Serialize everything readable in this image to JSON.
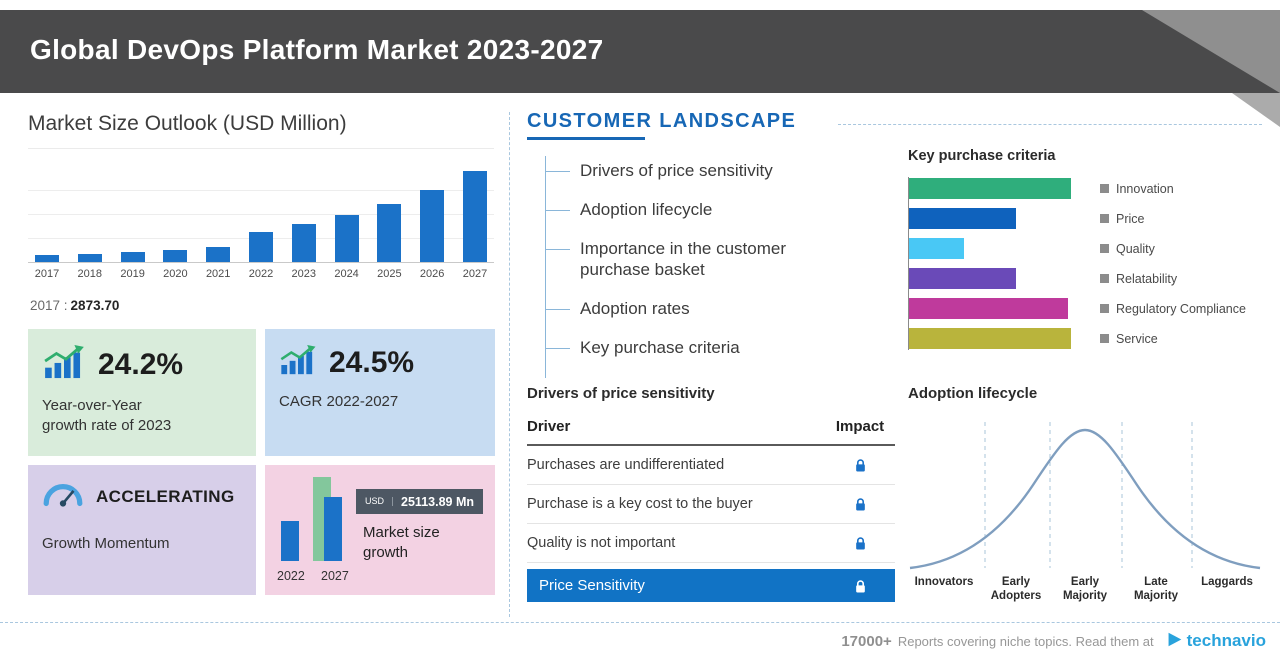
{
  "header": {
    "title": "Global DevOps Platform Market 2023-2027"
  },
  "market_outlook": {
    "title": "Market Size Outlook (USD Million)",
    "base_year_label": "2017 :",
    "base_year_value": "2873.70",
    "cards": {
      "yoy": {
        "value": "24.2%",
        "label_lines": [
          "Year-over-Year",
          "growth rate of 2023"
        ]
      },
      "cagr": {
        "value": "24.5%",
        "label": "CAGR 2022-2027"
      },
      "momentum": {
        "value": "ACCELERATING",
        "label": "Growth Momentum"
      },
      "growth": {
        "badge_currency": "USD",
        "badge_value": "25113.89 Mn",
        "label_lines": [
          "Market size",
          "growth"
        ],
        "year_start": "2022",
        "year_end": "2027"
      }
    }
  },
  "customer_landscape": {
    "title": "CUSTOMER LANDSCAPE",
    "items": [
      "Drivers of price sensitivity",
      "Adoption lifecycle",
      "Importance in the customer purchase basket",
      "Adoption rates",
      "Key purchase criteria"
    ],
    "key_purchase": {
      "title": "Key purchase criteria",
      "legend": [
        "Innovation",
        "Price",
        "Quality",
        "Relatability",
        "Regulatory Compliance",
        "Service"
      ]
    },
    "price_sensitivity": {
      "title": "Drivers of price sensitivity",
      "col_driver": "Driver",
      "col_impact": "Impact",
      "rows": [
        "Purchases are undifferentiated",
        "Purchase is a key cost to the buyer",
        "Quality is not important"
      ],
      "highlight_row": "Price Sensitivity"
    },
    "adoption": {
      "title": "Adoption lifecycle",
      "stages": [
        "Innovators",
        "Early Adopters",
        "Early Majority",
        "Late Majority",
        "Laggards"
      ]
    }
  },
  "footer": {
    "count": "17000+",
    "text": "Reports covering niche topics. Read them at",
    "brand": "technavio"
  },
  "colors": {
    "accent_blue": "#1b72c8",
    "heading_blue": "#1767b5",
    "highlight_row_bg": "#1173c5",
    "banner_gray": "#4a4a4b",
    "card_green": "#d9ecdb",
    "card_blue": "#c7dcf2",
    "card_lavender": "#d7cfe9",
    "card_pink": "#f3d2e3",
    "technavio_blue": "#29a3dc"
  },
  "chart_data": [
    {
      "id": "market_size",
      "type": "bar",
      "title": "Market Size Outlook (USD Million)",
      "categories": [
        "2017",
        "2018",
        "2019",
        "2020",
        "2021",
        "2022",
        "2023",
        "2024",
        "2025",
        "2026",
        "2027"
      ],
      "values": [
        2873.7,
        3480,
        4230,
        5160,
        6320,
        12601.5,
        15651.1,
        19485,
        24258,
        30201,
        37715.4
      ],
      "ylabel": "USD Million",
      "ylim": [
        0,
        40000
      ],
      "grid": true,
      "bar_color": "#1b72c8"
    },
    {
      "id": "key_purchase_criteria",
      "type": "bar",
      "orientation": "horizontal",
      "title": "Key purchase criteria",
      "categories": [
        "Innovation",
        "Price",
        "Quality",
        "Relatability",
        "Regulatory Compliance",
        "Service"
      ],
      "values": [
        100,
        66,
        34,
        66,
        98,
        100
      ],
      "value_unit": "relative_length_percent",
      "colors": [
        "#2fae7c",
        "#0f62bd",
        "#49c8f5",
        "#6a4ab8",
        "#bf3a9c",
        "#b9b43c"
      ],
      "legend_position": "right"
    },
    {
      "id": "market_size_growth",
      "type": "bar",
      "title": "Market size growth",
      "categories": [
        "2022",
        "2027"
      ],
      "values": [
        12601.5,
        37715.4
      ],
      "annotation": "USD 25113.89 Mn"
    },
    {
      "id": "adoption_lifecycle",
      "type": "area",
      "title": "Adoption lifecycle",
      "categories": [
        "Innovators",
        "Early Adopters",
        "Early Majority",
        "Late Majority",
        "Laggards"
      ],
      "curve": "bell",
      "peak_category": "Early Majority"
    }
  ]
}
